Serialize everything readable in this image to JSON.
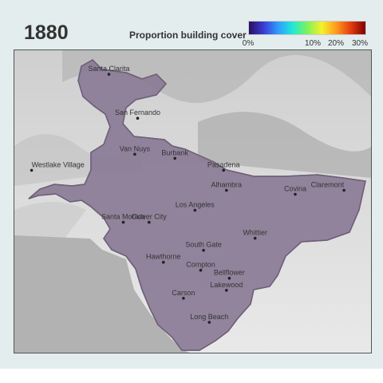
{
  "year": "1880",
  "legend": {
    "title": "Proportion building cover",
    "ticks": [
      "0%",
      "10%",
      "20%",
      "30%"
    ],
    "tick_values": [
      0,
      10,
      20,
      30
    ],
    "range": [
      0,
      32
    ],
    "colors": [
      "#2b0f5e",
      "#3a3bd4",
      "#2f9bff",
      "#22e8d8",
      "#7cf25a",
      "#f5f12b",
      "#ff9b1e",
      "#e23b12",
      "#7f0000"
    ]
  },
  "colors": {
    "panel_background": "#e3eded",
    "city_area_fill": "#8a7b95",
    "water": "#b2b2b2",
    "terrain_light": "#d9d9d9",
    "hex_line": "#a798b2"
  },
  "cities": [
    {
      "name": "Santa Clarita",
      "lon": -118.54,
      "lat": 34.39
    },
    {
      "name": "San Fernando",
      "lon": -118.44,
      "lat": 34.28
    },
    {
      "name": "Van Nuys",
      "lon": -118.45,
      "lat": 34.19
    },
    {
      "name": "Burbank",
      "lon": -118.31,
      "lat": 34.18
    },
    {
      "name": "Pasadena",
      "lon": -118.14,
      "lat": 34.15
    },
    {
      "name": "Westlake Village",
      "lon": -118.81,
      "lat": 34.15
    },
    {
      "name": "Alhambra",
      "lon": -118.13,
      "lat": 34.1
    },
    {
      "name": "Claremont",
      "lon": -117.72,
      "lat": 34.1
    },
    {
      "name": "Los Angeles",
      "lon": -118.24,
      "lat": 34.05
    },
    {
      "name": "Covina",
      "lon": -117.89,
      "lat": 34.09
    },
    {
      "name": "Culver City",
      "lon": -118.4,
      "lat": 34.02
    },
    {
      "name": "Santa Monica",
      "lon": -118.49,
      "lat": 34.02
    },
    {
      "name": "Whittier",
      "lon": -118.03,
      "lat": 33.98
    },
    {
      "name": "South Gate",
      "lon": -118.21,
      "lat": 33.95
    },
    {
      "name": "Hawthorne",
      "lon": -118.35,
      "lat": 33.92
    },
    {
      "name": "Compton",
      "lon": -118.22,
      "lat": 33.9
    },
    {
      "name": "Bellflower",
      "lon": -118.12,
      "lat": 33.88
    },
    {
      "name": "Lakewood",
      "lon": -118.13,
      "lat": 33.85
    },
    {
      "name": "Carson",
      "lon": -118.28,
      "lat": 33.83
    },
    {
      "name": "Long Beach",
      "lon": -118.19,
      "lat": 33.77
    }
  ]
}
